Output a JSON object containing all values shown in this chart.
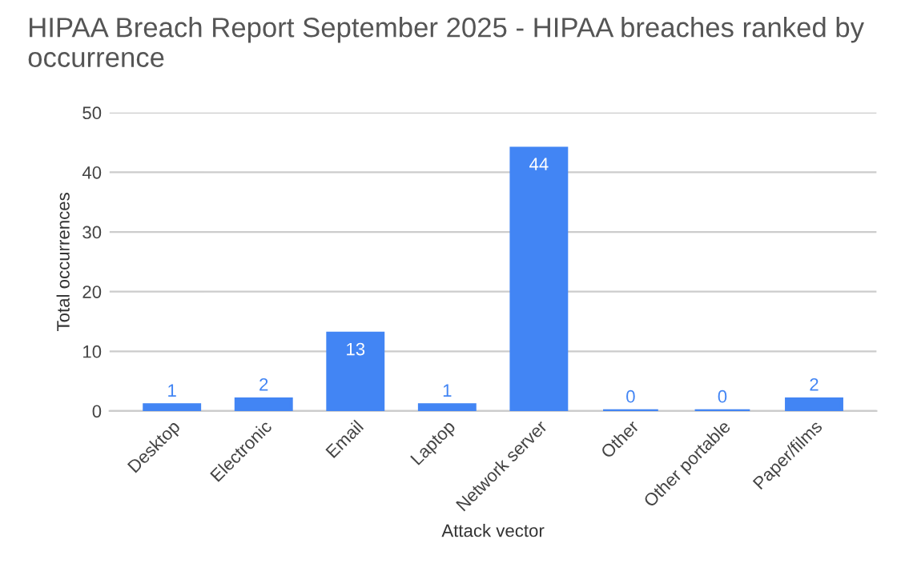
{
  "chart_data": {
    "type": "bar",
    "title": "HIPAA Breach Report September 2025 - HIPAA breaches ranked by occurrence",
    "xlabel": "Attack vector",
    "ylabel": "Total occurrences",
    "categories": [
      "Desktop",
      "Electronic",
      "Email",
      "Laptop",
      "Network server",
      "Other",
      "Other portable",
      "Paper/films"
    ],
    "values": [
      1,
      2,
      13,
      1,
      44,
      0,
      0,
      2
    ],
    "color": "#4285f4",
    "ylim": [
      0,
      50
    ],
    "yticks": [
      0,
      10,
      20,
      30,
      40,
      50
    ],
    "grid": "y",
    "data_labels": true
  }
}
